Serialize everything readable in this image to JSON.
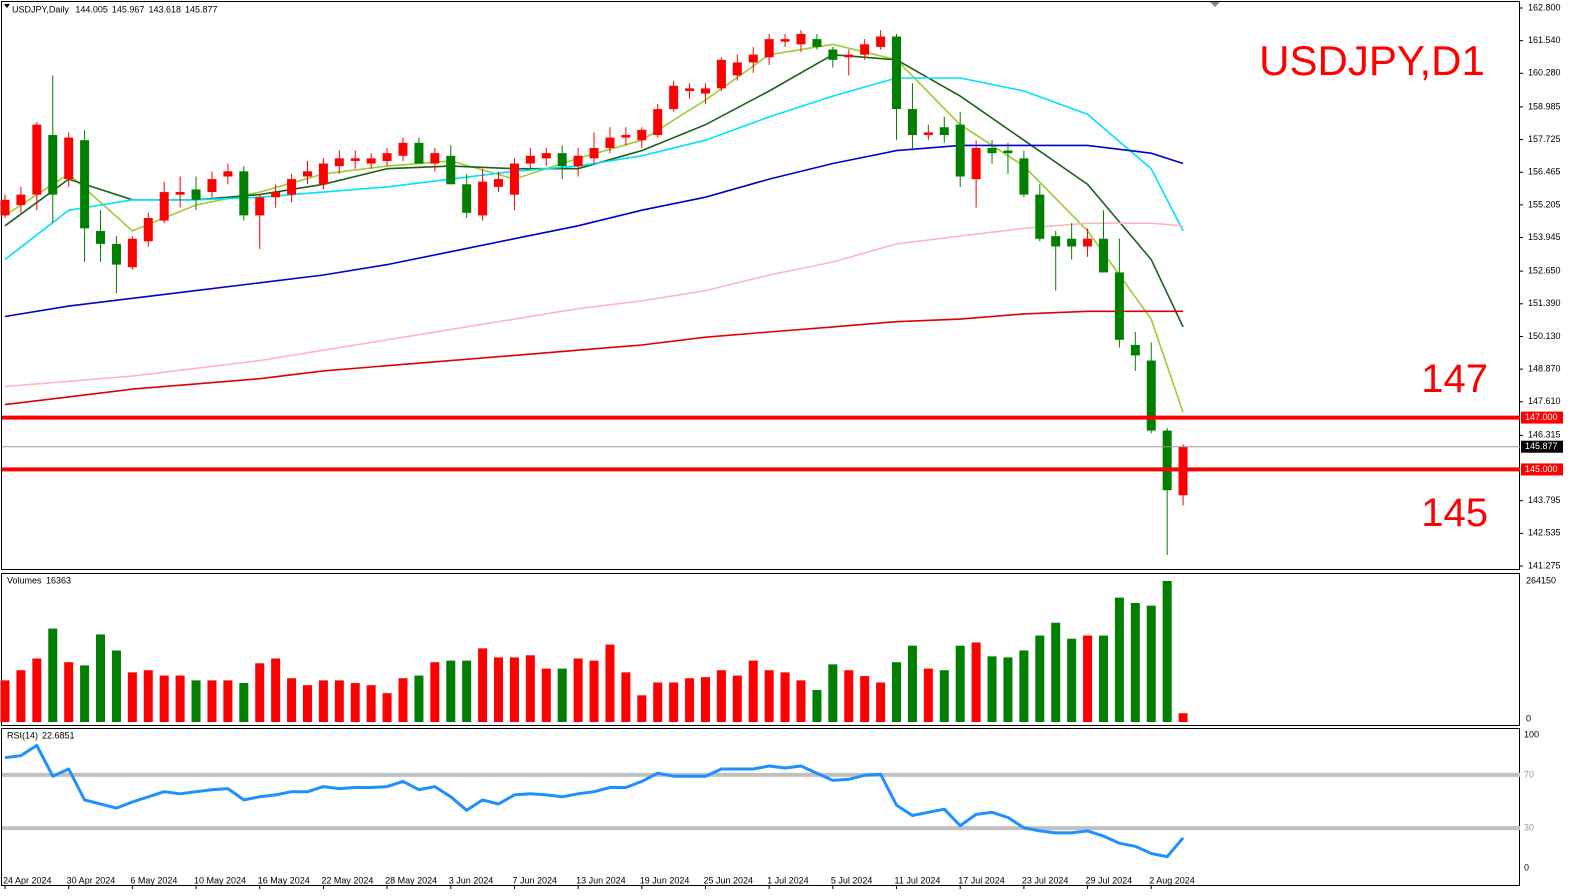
{
  "chart_data": [
    {
      "type": "candlestick",
      "title": "USDJPY,D1",
      "header": "USDJPY,Daily",
      "header_values": [
        144.005,
        145.967,
        143.618,
        145.877
      ],
      "up_color": "#ff0000",
      "down_color": "#007f00",
      "categories": [
        "24 Apr 2024",
        null,
        null,
        null,
        "30 Apr 2024",
        null,
        null,
        null,
        "6 May 2024",
        null,
        null,
        null,
        "10 May 2024",
        null,
        null,
        null,
        "16 May 2024",
        null,
        null,
        null,
        "22 May 2024",
        null,
        null,
        null,
        "28 May 2024",
        null,
        null,
        null,
        "3 Jun 2024",
        null,
        null,
        null,
        "7 Jun 2024",
        null,
        null,
        null,
        "13 Jun 2024",
        null,
        null,
        null,
        "19 Jun 2024",
        null,
        null,
        null,
        "25 Jun 2024",
        null,
        null,
        null,
        "1 Jul 2024",
        null,
        null,
        null,
        "5 Jul 2024",
        null,
        null,
        null,
        "11 Jul 2024",
        null,
        null,
        null,
        "17 Jul 2024",
        null,
        null,
        null,
        "23 Jul 2024",
        null,
        null,
        null,
        "29 Jul 2024",
        null,
        null,
        null,
        "2 Aug 2024",
        null,
        null
      ],
      "ohlc": [
        [
          154.8,
          155.6,
          154.7,
          155.4
        ],
        [
          155.2,
          155.9,
          154.9,
          155.6
        ],
        [
          155.6,
          158.4,
          155.0,
          158.3
        ],
        [
          157.9,
          160.2,
          154.5,
          155.6
        ],
        [
          156.2,
          158.0,
          155.9,
          157.8
        ],
        [
          157.7,
          158.1,
          153.0,
          154.3
        ],
        [
          154.2,
          155.0,
          153.0,
          153.7
        ],
        [
          153.7,
          154.0,
          151.8,
          152.9
        ],
        [
          152.8,
          154.0,
          152.7,
          153.9
        ],
        [
          153.8,
          154.9,
          153.6,
          154.7
        ],
        [
          154.6,
          156.1,
          154.5,
          155.7
        ],
        [
          155.6,
          156.3,
          155.1,
          155.7
        ],
        [
          155.8,
          156.3,
          155.0,
          155.4
        ],
        [
          155.7,
          156.5,
          155.5,
          156.2
        ],
        [
          156.3,
          156.8,
          156.0,
          156.5
        ],
        [
          156.5,
          156.7,
          154.6,
          154.8
        ],
        [
          154.8,
          155.6,
          153.5,
          155.5
        ],
        [
          155.5,
          156.0,
          155.1,
          155.7
        ],
        [
          155.6,
          156.4,
          155.3,
          156.2
        ],
        [
          156.3,
          156.9,
          156.0,
          156.5
        ],
        [
          156.0,
          157.0,
          155.8,
          156.8
        ],
        [
          156.7,
          157.3,
          156.4,
          157.0
        ],
        [
          156.9,
          157.3,
          156.6,
          157.0
        ],
        [
          156.8,
          157.2,
          156.6,
          157.0
        ],
        [
          156.9,
          157.4,
          156.7,
          157.2
        ],
        [
          157.1,
          157.8,
          156.9,
          157.6
        ],
        [
          157.6,
          157.8,
          156.8,
          156.8
        ],
        [
          156.8,
          157.4,
          156.5,
          157.2
        ],
        [
          157.1,
          157.5,
          156.0,
          156.0
        ],
        [
          156.0,
          156.4,
          154.7,
          154.9
        ],
        [
          154.8,
          156.6,
          154.6,
          156.1
        ],
        [
          155.9,
          156.5,
          155.7,
          156.2
        ],
        [
          155.6,
          157.0,
          155.0,
          156.8
        ],
        [
          156.8,
          157.4,
          156.6,
          157.1
        ],
        [
          157.0,
          157.4,
          156.7,
          157.2
        ],
        [
          157.2,
          157.5,
          156.2,
          156.7
        ],
        [
          156.7,
          157.4,
          156.3,
          157.1
        ],
        [
          157.0,
          158.0,
          156.8,
          157.4
        ],
        [
          157.4,
          158.2,
          157.2,
          157.8
        ],
        [
          157.8,
          158.2,
          157.5,
          157.9
        ],
        [
          157.7,
          158.2,
          157.4,
          158.1
        ],
        [
          157.9,
          159.1,
          157.8,
          158.9
        ],
        [
          158.9,
          160.0,
          158.8,
          159.8
        ],
        [
          159.6,
          159.9,
          159.3,
          159.7
        ],
        [
          159.5,
          159.9,
          159.1,
          159.7
        ],
        [
          159.7,
          160.9,
          159.6,
          160.8
        ],
        [
          160.2,
          161.0,
          160.0,
          160.7
        ],
        [
          160.7,
          161.3,
          160.3,
          161.0
        ],
        [
          160.9,
          161.8,
          160.6,
          161.6
        ],
        [
          161.5,
          161.8,
          161.3,
          161.6
        ],
        [
          161.4,
          161.95,
          161.1,
          161.8
        ],
        [
          161.6,
          161.8,
          161.2,
          161.3
        ],
        [
          161.2,
          161.3,
          160.5,
          160.8
        ],
        [
          160.9,
          161.2,
          160.2,
          161.0
        ],
        [
          161.0,
          161.6,
          160.8,
          161.4
        ],
        [
          161.3,
          161.95,
          161.2,
          161.7
        ],
        [
          161.7,
          161.8,
          157.7,
          158.9
        ],
        [
          158.9,
          159.9,
          157.3,
          157.9
        ],
        [
          157.9,
          158.3,
          157.7,
          158.0
        ],
        [
          158.2,
          158.6,
          157.6,
          157.9
        ],
        [
          158.3,
          158.8,
          155.9,
          156.3
        ],
        [
          156.2,
          157.7,
          155.1,
          157.4
        ],
        [
          157.4,
          157.7,
          156.8,
          157.2
        ],
        [
          157.3,
          157.6,
          156.4,
          157.2
        ],
        [
          157.0,
          157.3,
          155.5,
          155.6
        ],
        [
          155.6,
          156.0,
          153.8,
          153.9
        ],
        [
          154.0,
          154.2,
          151.9,
          153.6
        ],
        [
          153.9,
          154.5,
          153.1,
          153.6
        ],
        [
          153.6,
          154.3,
          153.2,
          153.9
        ],
        [
          153.9,
          155.0,
          152.6,
          152.6
        ],
        [
          152.6,
          153.9,
          149.7,
          150.0
        ],
        [
          149.8,
          150.3,
          148.8,
          149.4
        ],
        [
          149.2,
          149.9,
          146.4,
          146.5
        ],
        [
          146.5,
          146.6,
          141.7,
          144.2
        ],
        [
          144.005,
          145.967,
          143.618,
          145.877
        ]
      ],
      "moving_averages": [
        {
          "color": "#9acd32",
          "x": [
            0,
            4,
            8,
            12,
            16,
            20,
            24,
            28,
            32,
            36,
            40,
            44,
            48,
            52,
            56,
            60,
            64,
            68,
            72,
            74
          ],
          "values": [
            154.8,
            156.4,
            154.2,
            155.2,
            155.7,
            156.4,
            156.7,
            156.9,
            156.2,
            157.0,
            157.7,
            159.25,
            161.0,
            161.4,
            160.8,
            158.3,
            156.7,
            154.2,
            150.8,
            147.2
          ]
        },
        {
          "color": "#1e601e",
          "x": [
            0,
            4,
            8,
            12,
            16,
            20,
            24,
            28,
            32,
            36,
            40,
            44,
            48,
            52,
            56,
            60,
            64,
            68,
            72,
            74
          ],
          "values": [
            154.4,
            156.2,
            155.4,
            155.4,
            155.6,
            156.0,
            156.6,
            156.7,
            156.6,
            156.6,
            157.3,
            158.3,
            159.6,
            161.0,
            160.8,
            159.4,
            157.7,
            156.0,
            153.1,
            150.5
          ]
        },
        {
          "color": "#00e0ff",
          "x": [
            0,
            4,
            8,
            12,
            16,
            20,
            24,
            28,
            32,
            36,
            40,
            44,
            48,
            52,
            56,
            60,
            64,
            68,
            72,
            74
          ],
          "values": [
            153.1,
            155.0,
            155.4,
            155.4,
            155.5,
            155.7,
            155.9,
            156.2,
            156.5,
            156.7,
            157.1,
            157.7,
            158.6,
            159.4,
            160.1,
            160.1,
            159.6,
            158.7,
            156.6,
            154.2
          ]
        },
        {
          "color": "#0000cd",
          "x": [
            0,
            4,
            8,
            12,
            16,
            20,
            24,
            28,
            32,
            36,
            40,
            44,
            48,
            52,
            56,
            60,
            64,
            68,
            72,
            74
          ],
          "values": [
            150.9,
            151.3,
            151.6,
            151.9,
            152.2,
            152.5,
            152.9,
            153.4,
            153.9,
            154.4,
            155.0,
            155.5,
            156.2,
            156.8,
            157.3,
            157.5,
            157.5,
            157.5,
            157.2,
            156.8
          ]
        },
        {
          "color": "#ffb6c1",
          "x": [
            0,
            4,
            8,
            12,
            16,
            20,
            24,
            28,
            32,
            36,
            40,
            44,
            48,
            52,
            56,
            60,
            64,
            68,
            72,
            74
          ],
          "values": [
            148.2,
            148.4,
            148.6,
            148.9,
            149.2,
            149.6,
            150.0,
            150.4,
            150.8,
            151.2,
            151.5,
            151.9,
            152.5,
            153.0,
            153.7,
            154.0,
            154.3,
            154.5,
            154.5,
            154.4
          ]
        },
        {
          "color": "#e00000",
          "x": [
            0,
            4,
            8,
            12,
            16,
            20,
            24,
            28,
            32,
            36,
            40,
            44,
            48,
            52,
            56,
            60,
            64,
            68,
            72,
            74
          ],
          "values": [
            147.5,
            147.8,
            148.1,
            148.3,
            148.5,
            148.8,
            149.0,
            149.2,
            149.4,
            149.6,
            149.8,
            150.1,
            150.3,
            150.5,
            150.7,
            150.8,
            151.0,
            151.1,
            151.1,
            151.1
          ]
        }
      ],
      "levels": [
        {
          "value": 147,
          "label": "147.000",
          "text": "147",
          "color": "#ff0000"
        },
        {
          "value": 145,
          "label": "145.000",
          "text": "145",
          "color": "#ff0000"
        }
      ],
      "current_price": {
        "value": 145.877,
        "label": "145.877"
      },
      "ylim": [
        141.275,
        162.8
      ],
      "yticks": [
        {
          "value": 162.8,
          "label": "162.800"
        },
        {
          "value": 161.54,
          "label": "161.540"
        },
        {
          "value": 160.28,
          "label": "160.280"
        },
        158.985,
        {
          "value": 157.725,
          "label": "157.725"
        },
        156.465,
        155.205,
        153.945,
        {
          "value": 152.65,
          "label": "152.650"
        },
        {
          "value": 151.39,
          "label": "151.390"
        },
        {
          "value": 150.13,
          "label": "150.130"
        },
        {
          "value": 148.87,
          "label": "148.870"
        },
        {
          "value": 147.61,
          "label": "147.610"
        },
        146.315,
        143.795,
        142.535,
        141.275
      ]
    },
    {
      "type": "bar",
      "label": "Volumes",
      "label_value": 16363,
      "values": [
        78000,
        97000,
        119000,
        175000,
        112000,
        106000,
        164000,
        134000,
        93000,
        97000,
        87000,
        87000,
        78000,
        78000,
        78000,
        73000,
        110000,
        119000,
        82000,
        69000,
        78000,
        78000,
        73000,
        69000,
        54000,
        82000,
        87000,
        112000,
        115000,
        115000,
        138000,
        121000,
        121000,
        125000,
        100000,
        100000,
        119000,
        115000,
        145000,
        93000,
        50000,
        74000,
        74000,
        82000,
        84000,
        97000,
        87000,
        115000,
        97000,
        93000,
        78000,
        60000,
        108000,
        97000,
        86000,
        74000,
        112000,
        143000,
        100000,
        97000,
        143000,
        149000,
        123000,
        121000,
        134000,
        162000,
        186000,
        156000,
        162000,
        162000,
        233000,
        223000,
        218000,
        264150,
        16363
      ],
      "ylim": [
        0,
        264150
      ],
      "yticks": [
        0,
        264150
      ]
    },
    {
      "type": "line",
      "label": "RSI(14)",
      "label_value": 22.6851,
      "color": "#1e90ff",
      "values": [
        82.9,
        84.5,
        92.2,
        69.0,
        74.4,
        51.2,
        48.1,
        45.0,
        49.6,
        53.5,
        57.4,
        55.8,
        57.4,
        58.9,
        59.7,
        51.2,
        53.5,
        55.0,
        57.4,
        57.4,
        61.2,
        59.7,
        60.5,
        60.5,
        61.2,
        65.1,
        58.9,
        61.2,
        53.5,
        43.4,
        51.2,
        48.1,
        55.0,
        55.8,
        55.0,
        53.5,
        55.8,
        57.4,
        60.5,
        60.5,
        65.1,
        71.3,
        69.0,
        69.0,
        69.0,
        74.4,
        74.4,
        74.4,
        76.7,
        75.2,
        76.7,
        71.3,
        65.9,
        66.7,
        69.8,
        70.5,
        47.3,
        39.5,
        41.9,
        44.2,
        31.8,
        40.3,
        41.9,
        38.0,
        30.2,
        27.9,
        26.4,
        26.4,
        27.9,
        24.0,
        18.6,
        16.3,
        10.9,
        8.5,
        22.6851
      ],
      "levels": [
        70,
        30
      ],
      "ylim": [
        0,
        100
      ],
      "yticks": [
        0,
        30,
        70,
        100
      ]
    }
  ]
}
